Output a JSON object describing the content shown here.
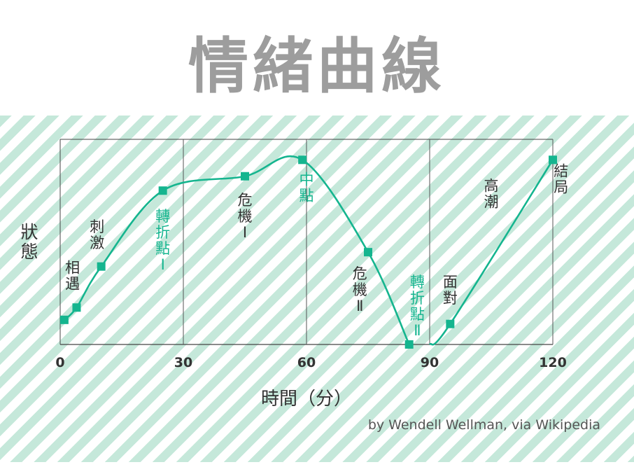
{
  "title": "情緒曲線",
  "credit": "by Wendell Wellman, via Wikipedia",
  "colors": {
    "accent": "#15b58f",
    "title": "#9d9d9d",
    "stripe": "#c5e8da",
    "text": "#333333"
  },
  "chart_data": {
    "type": "line",
    "title": "情緒曲線",
    "xlabel": "時間（分）",
    "ylabel": "狀態",
    "xlim": [
      0,
      120
    ],
    "ylim": [
      0,
      100
    ],
    "xticks": [
      "0",
      "30",
      "60",
      "90",
      "120"
    ],
    "xtick_values": [
      0,
      30,
      60,
      90,
      120
    ],
    "grid": "vertical",
    "series": [
      {
        "points": [
          {
            "x": 1,
            "y": 12
          },
          {
            "x": 4,
            "y": 18
          },
          {
            "x": 10,
            "y": 38
          },
          {
            "x": 25,
            "y": 75
          },
          {
            "x": 45,
            "y": 82
          },
          {
            "x": 59,
            "y": 90
          },
          {
            "x": 75,
            "y": 45
          },
          {
            "x": 85,
            "y": 0
          },
          {
            "x": 95,
            "y": 10
          },
          {
            "x": 120,
            "y": 90
          }
        ],
        "segments": [
          {
            "from_x": 0,
            "to_x": 85
          },
          {
            "from_x": 90,
            "to_x": 120
          }
        ]
      }
    ],
    "annotations": [
      {
        "text": "相遇",
        "x": 3,
        "y": 35,
        "highlight": false
      },
      {
        "text": "刺激",
        "x": 9,
        "y": 55,
        "highlight": false
      },
      {
        "text": "轉折點Ⅰ",
        "x": 25,
        "y": 60,
        "highlight": true
      },
      {
        "text": "危機Ⅰ",
        "x": 45,
        "y": 68,
        "highlight": false
      },
      {
        "text": "中點",
        "x": 60,
        "y": 78,
        "highlight": true
      },
      {
        "text": "危機Ⅱ",
        "x": 73,
        "y": 32,
        "highlight": false
      },
      {
        "text": "轉折點Ⅱ",
        "x": 87,
        "y": 28,
        "highlight": true
      },
      {
        "text": "面對",
        "x": 95,
        "y": 28,
        "highlight": false
      },
      {
        "text": "高潮",
        "x": 105,
        "y": 75,
        "highlight": false
      },
      {
        "text": "結局",
        "x": 122,
        "y": 82,
        "highlight": false
      }
    ]
  }
}
